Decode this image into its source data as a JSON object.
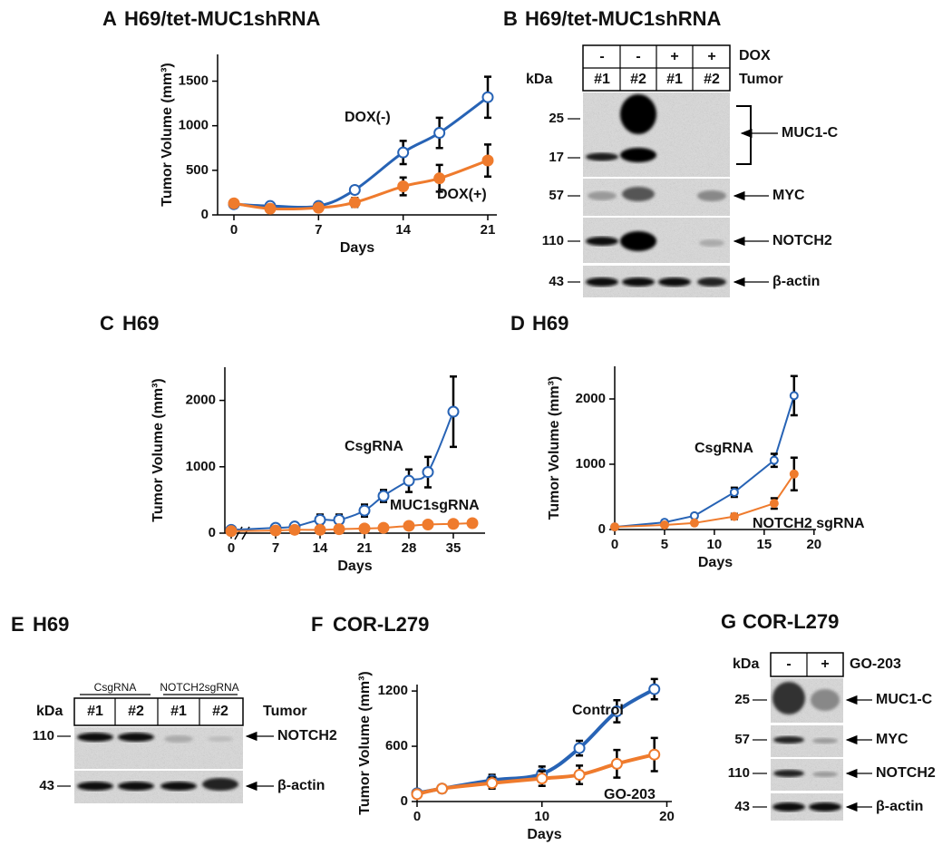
{
  "panels": [
    {
      "letter": "A",
      "title": "H69/tet-MUC1shRNA"
    },
    {
      "letter": "B",
      "title": "H69/tet-MUC1shRNA"
    },
    {
      "letter": "C",
      "title": "H69"
    },
    {
      "letter": "D",
      "title": "H69"
    },
    {
      "letter": "E",
      "title": "H69"
    },
    {
      "letter": "F",
      "title": "COR-L279"
    },
    {
      "letter": "G",
      "title": "COR-L279"
    }
  ],
  "chart_data": [
    {
      "type": "line",
      "xlabel": "Days",
      "ylabel": "Tumor Volume (mm³)",
      "smooth": true,
      "x": [
        0,
        3,
        7,
        10,
        14,
        17,
        21
      ],
      "xlim": [
        -1.35,
        21.75
      ],
      "xticks": [
        0,
        7,
        14,
        21
      ],
      "ylim": [
        0,
        1800
      ],
      "yticks": [
        0,
        500,
        1000,
        1500
      ],
      "series": [
        {
          "name": "DOX(-)",
          "color": "#2763b5",
          "marker": "open",
          "values": [
            120,
            100,
            100,
            280,
            700,
            920,
            1320
          ],
          "errors": [
            0,
            0,
            0,
            40,
            130,
            170,
            230
          ]
        },
        {
          "name": "DOX(+)",
          "color": "#ef7b2d",
          "marker": "filled",
          "values": [
            130,
            70,
            80,
            140,
            320,
            410,
            610
          ],
          "errors": [
            0,
            0,
            0,
            50,
            100,
            150,
            180
          ]
        }
      ]
    },
    {
      "type": "line",
      "xlabel": "Days",
      "ylabel": "Tumor Volume (mm³)",
      "smooth": true,
      "x": [
        0,
        7,
        10,
        14,
        17,
        21,
        24,
        28,
        31,
        35,
        38
      ],
      "xlim": [
        -1,
        40
      ],
      "xticks": [
        0,
        7,
        14,
        21,
        28,
        35
      ],
      "ylim": [
        0,
        2500
      ],
      "yticks": [
        0,
        1000,
        2000
      ],
      "series": [
        {
          "name": "CsgRNA",
          "color": "#2763b5",
          "marker": "open",
          "values": [
            50,
            80,
            100,
            200,
            200,
            340,
            560,
            790,
            920,
            1830,
            null
          ],
          "errors": [
            20,
            20,
            30,
            80,
            80,
            90,
            90,
            170,
            230,
            530,
            null
          ]
        },
        {
          "name": "MUC1sgRNA",
          "color": "#ef7b2d",
          "marker": "filled",
          "values": [
            30,
            40,
            50,
            50,
            60,
            70,
            80,
            110,
            130,
            140,
            150
          ],
          "errors": [
            10,
            10,
            10,
            20,
            20,
            20,
            20,
            30,
            30,
            30,
            30
          ]
        }
      ]
    },
    {
      "type": "line",
      "xlabel": "Days",
      "ylabel": "Tumor Volume (mm³)",
      "smooth": false,
      "x": [
        0,
        5,
        8,
        12,
        16,
        18
      ],
      "xlim": [
        0,
        20.2
      ],
      "xticks": [
        0,
        5,
        10,
        15,
        20
      ],
      "ylim": [
        0,
        2500
      ],
      "yticks": [
        0,
        1000,
        2000
      ],
      "series": [
        {
          "name": "CsgRNA",
          "color": "#2763b5",
          "marker": "open",
          "values": [
            40,
            110,
            210,
            570,
            1060,
            2050
          ],
          "errors": [
            0,
            0,
            30,
            70,
            100,
            300
          ]
        },
        {
          "name": "NOTCH2 sgRNA",
          "color": "#ef7b2d",
          "marker": "filled",
          "values": [
            40,
            70,
            100,
            200,
            400,
            850
          ],
          "errors": [
            0,
            0,
            0,
            40,
            80,
            250
          ]
        }
      ]
    },
    {
      "type": "line",
      "xlabel": "Days",
      "ylabel": "Tumor Volume (mm³)",
      "smooth": true,
      "x": [
        0,
        2,
        6,
        10,
        13,
        16,
        19
      ],
      "xlim": [
        0,
        20.4
      ],
      "xticks": [
        0,
        10,
        20
      ],
      "ylim": [
        0,
        1270
      ],
      "yticks": [
        0,
        600,
        1200
      ],
      "series": [
        {
          "name": "Control",
          "color": "#2763b5",
          "marker": "open",
          "values": [
            90,
            140,
            230,
            300,
            580,
            980,
            1220
          ],
          "errors": [
            20,
            40,
            60,
            80,
            80,
            120,
            110
          ]
        },
        {
          "name": "GO-203",
          "color": "#ef7b2d",
          "marker": "open",
          "values": [
            80,
            140,
            200,
            250,
            290,
            410,
            510
          ],
          "errors": [
            20,
            40,
            60,
            80,
            100,
            150,
            180
          ]
        }
      ]
    }
  ],
  "blots": {
    "B": {
      "kda": "kDa",
      "treatment": "DOX",
      "treatment_lanes": [
        "-",
        "-",
        "+",
        "+"
      ],
      "tumor": "Tumor",
      "lanes": [
        "#1",
        "#2",
        "#1",
        "#2"
      ],
      "markers": [
        25,
        17,
        57,
        110,
        43
      ],
      "targets": [
        "MUC1-C",
        "MYC",
        "NOTCH2",
        "β-actin"
      ]
    },
    "E": {
      "groups": [
        "CsgRNA",
        "NOTCH2sgRNA"
      ],
      "kda": "kDa",
      "tumor": "Tumor",
      "lanes": [
        "#1",
        "#2",
        "#1",
        "#2"
      ],
      "markers": [
        110,
        43
      ],
      "targets": [
        "NOTCH2",
        "β-actin"
      ]
    },
    "G": {
      "kda": "kDa",
      "treatment": "GO-203",
      "treatment_lanes": [
        "-",
        "+"
      ],
      "markers": [
        25,
        57,
        110,
        43
      ],
      "targets": [
        "MUC1-C",
        "MYC",
        "NOTCH2",
        "β-actin"
      ]
    }
  }
}
